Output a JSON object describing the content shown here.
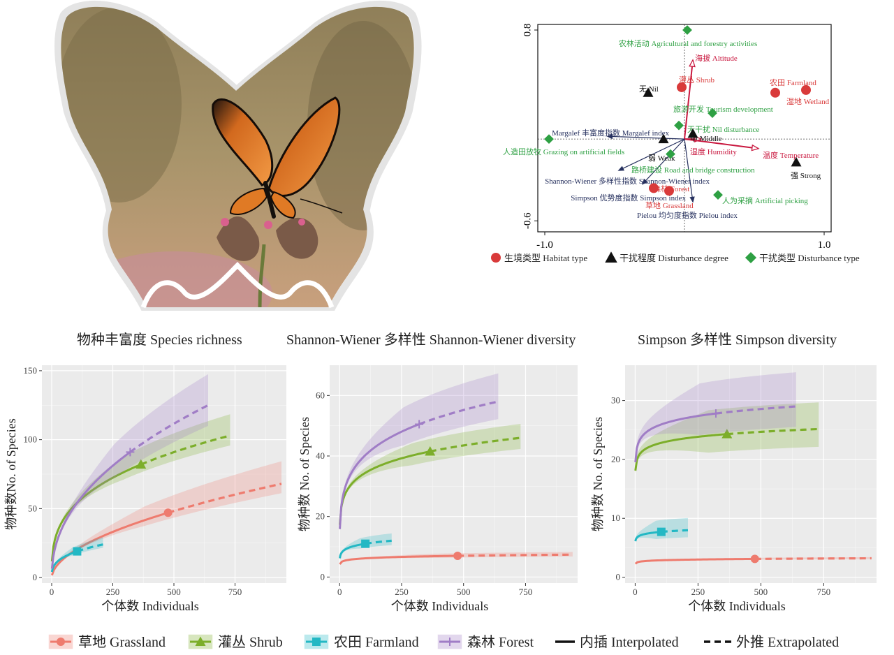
{
  "colors": {
    "grassland": "#EE7B6E",
    "shrub": "#7CAE2A",
    "farmland": "#23B8C4",
    "forest": "#A07DC6",
    "habitat": "#D93A3A",
    "degree": "#111111",
    "disturbance": "#2EA043",
    "arrow_red": "#C9183F",
    "arrow_navy": "#26305E",
    "panel_bg": "#EBEBEB"
  },
  "rda": {
    "y_ticks": [
      "0.8",
      "-0.6"
    ],
    "x_ticks": [
      "-1.0",
      "1.0"
    ],
    "points": [
      {
        "group": "disturbance",
        "label": "农林活动 Agricultural and forestry activities",
        "x": 0.02,
        "y": 0.8
      },
      {
        "group": "habitat",
        "label": "灌丛 Shrub",
        "x": -0.02,
        "y": 0.38
      },
      {
        "group": "habitat",
        "label": "农田 Farmland",
        "x": 0.65,
        "y": 0.34
      },
      {
        "group": "habitat",
        "label": "湿地 Wetland",
        "x": 0.87,
        "y": 0.36
      },
      {
        "group": "degree",
        "label": "无 Nil",
        "x": -0.26,
        "y": 0.34
      },
      {
        "group": "disturbance",
        "label": "旅游开发 Tourism development",
        "x": 0.2,
        "y": 0.19
      },
      {
        "group": "disturbance",
        "label": "无干扰 Nil disturbance",
        "x": -0.04,
        "y": 0.1
      },
      {
        "group": "degree",
        "label": "中 Middle",
        "x": 0.06,
        "y": 0.04
      },
      {
        "group": "disturbance",
        "label": "人造田放牧 Grazing on artificial fields",
        "x": -0.97,
        "y": 0.0
      },
      {
        "group": "degree",
        "label": "弱 Weak",
        "x": -0.15,
        "y": 0.0
      },
      {
        "group": "disturbance",
        "label": "路桥建设 Road and bridge construction",
        "x": -0.1,
        "y": -0.11
      },
      {
        "group": "degree",
        "label": "强 Strong",
        "x": 0.8,
        "y": -0.17
      },
      {
        "group": "habitat",
        "label": "森林 Forest",
        "x": -0.11,
        "y": -0.38
      },
      {
        "group": "habitat",
        "label": "草地 Grassland",
        "x": -0.22,
        "y": -0.36
      },
      {
        "group": "disturbance",
        "label": "人为采摘 Artificial picking",
        "x": 0.24,
        "y": -0.41
      }
    ],
    "arrows": [
      {
        "label": "海拔 Altitude",
        "type": "env",
        "x": 0.06,
        "y": 0.58
      },
      {
        "label": "湿度 Humidity",
        "type": "env",
        "x": 0.12,
        "y": 0.0
      },
      {
        "label": "温度 Temperature",
        "type": "env",
        "x": 0.53,
        "y": -0.07
      },
      {
        "label": "Margalef 丰富度指数 Margalef index",
        "type": "index",
        "x": -0.55,
        "y": 0.02
      },
      {
        "label": "Shannon-Wiener 多样性指数 Shannon-Wiener index",
        "type": "index",
        "x": -0.47,
        "y": -0.23
      },
      {
        "label": "Simpson 优势度指数 Simpson index",
        "type": "index",
        "x": -0.3,
        "y": -0.33
      },
      {
        "label": "Pielou 均匀度指数 Pielou index",
        "type": "index",
        "x": 0.06,
        "y": -0.46
      }
    ],
    "legend": [
      {
        "group": "habitat",
        "label": "生境类型 Habitat type"
      },
      {
        "group": "degree",
        "label": "干扰程度 Disturbance degree"
      },
      {
        "group": "disturbance",
        "label": "干扰类型 Disturbance type"
      }
    ]
  },
  "panel_titles": [
    "物种丰富度  Species richness",
    "Shannon-Wiener 多样性  Shannon-Wiener diversity",
    "Simpson 多样性  Simpson diversity"
  ],
  "axis": {
    "xlabel": "个体数 Individuals",
    "ylabels": [
      "物种数No. of Species",
      "物种数 No. of Species",
      "物种数 No. of Species"
    ]
  },
  "legend": {
    "items": [
      {
        "key": "grassland",
        "marker": "circle",
        "label": "草地  Grassland"
      },
      {
        "key": "shrub",
        "marker": "triangle",
        "label": "灌丛  Shrub"
      },
      {
        "key": "farmland",
        "marker": "square",
        "label": "农田  Farmland"
      },
      {
        "key": "forest",
        "marker": "plus",
        "label": "森林 Forest"
      }
    ],
    "interpolated": "内插 Interpolated",
    "extrapolated": "外推 Extrapolated"
  },
  "chart_data": [
    {
      "type": "line",
      "title": "物种丰富度  Species richness",
      "xlabel": "个体数 Individuals",
      "ylabel": "物种数No. of Species",
      "xlim": [
        -40,
        960
      ],
      "ylim": [
        -4,
        154
      ],
      "x_ticks": [
        0,
        250,
        500,
        750
      ],
      "y_ticks": [
        0,
        50,
        100,
        150
      ],
      "grid": true,
      "series": [
        {
          "name": "草地  Grassland",
          "key": "grassland",
          "observed": [
            476,
            47
          ],
          "x_max": 940,
          "y_end": 68,
          "band": [
            0.1,
            0.24
          ]
        },
        {
          "name": "灌丛  Shrub",
          "key": "shrub",
          "observed": [
            365,
            82
          ],
          "x_max": 730,
          "y_end": 103,
          "band": [
            0.07,
            0.15
          ]
        },
        {
          "name": "农田  Farmland",
          "key": "farmland",
          "observed": [
            104,
            19
          ],
          "x_max": 210,
          "y_end": 24,
          "band": [
            0.1,
            0.22
          ]
        },
        {
          "name": "森林 Forest",
          "key": "forest",
          "observed": [
            321,
            91
          ],
          "x_max": 640,
          "y_end": 125,
          "band": [
            0.12,
            0.18
          ]
        }
      ]
    },
    {
      "type": "line",
      "title": "Shannon-Wiener 多样性  Shannon-Wiener diversity",
      "xlabel": "个体数 Individuals",
      "ylabel": "物种数 No. of Species",
      "xlim": [
        -40,
        960
      ],
      "ylim": [
        -2,
        70
      ],
      "x_ticks": [
        0,
        250,
        500,
        750
      ],
      "y_ticks": [
        0,
        20,
        40,
        60
      ],
      "grid": true,
      "series": [
        {
          "name": "草地  Grassland",
          "key": "grassland",
          "observed": [
            476,
            7
          ],
          "x_max": 940,
          "y_end": 7.4,
          "band": [
            0.08,
            0.12
          ]
        },
        {
          "name": "灌丛  Shrub",
          "key": "shrub",
          "observed": [
            365,
            41.5
          ],
          "x_max": 730,
          "y_end": 46,
          "band": [
            0.08,
            0.1
          ]
        },
        {
          "name": "农田  Farmland",
          "key": "farmland",
          "observed": [
            104,
            11
          ],
          "x_max": 210,
          "y_end": 12,
          "band": [
            0.12,
            0.2
          ]
        },
        {
          "name": "森林 Forest",
          "key": "forest",
          "observed": [
            321,
            50.5
          ],
          "x_max": 640,
          "y_end": 58,
          "band": [
            0.1,
            0.16
          ]
        }
      ]
    },
    {
      "type": "line",
      "title": "Simpson 多样性  Simpson diversity",
      "xlabel": "个体数 Individuals",
      "ylabel": "物种数 No. of Species",
      "xlim": [
        -40,
        960
      ],
      "ylim": [
        -1,
        36
      ],
      "x_ticks": [
        0,
        250,
        500,
        750
      ],
      "y_ticks": [
        0,
        10,
        20,
        30
      ],
      "grid": true,
      "series": [
        {
          "name": "草地  Grassland",
          "key": "grassland",
          "observed": [
            476,
            3.1
          ],
          "x_max": 940,
          "y_end": 3.1,
          "band": [
            0.04,
            0.06
          ]
        },
        {
          "name": "灌丛  Shrub",
          "key": "shrub",
          "observed": [
            365,
            24.3
          ],
          "x_max": 730,
          "y_end": 25,
          "band": [
            0.12,
            0.18
          ]
        },
        {
          "name": "农田  Farmland",
          "key": "farmland",
          "observed": [
            104,
            7.7
          ],
          "x_max": 210,
          "y_end": 7.9,
          "band": [
            0.15,
            0.26
          ]
        },
        {
          "name": "森林 Forest",
          "key": "forest",
          "observed": [
            321,
            27.8
          ],
          "x_max": 640,
          "y_end": 29,
          "band": [
            0.12,
            0.2
          ]
        }
      ]
    }
  ]
}
